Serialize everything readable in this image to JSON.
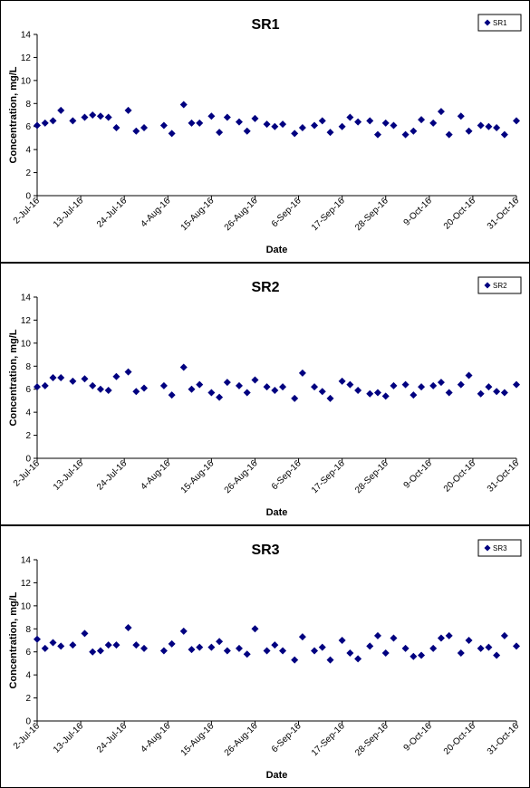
{
  "chart_data": [
    {
      "type": "scatter",
      "title": "SR1",
      "xlabel": "Date",
      "ylabel": "Concentration, mg/L",
      "ylim": [
        0,
        14
      ],
      "yticks": [
        0,
        2,
        4,
        6,
        8,
        10,
        12,
        14
      ],
      "xlim": [
        "2016-07-02",
        "2016-10-31"
      ],
      "xtick_labels": [
        "2-Jul-16",
        "13-Jul-16",
        "24-Jul-16",
        "4-Aug-16",
        "15-Aug-16",
        "26-Aug-16",
        "6-Sep-16",
        "17-Sep-16",
        "28-Sep-16",
        "9-Oct-16",
        "20-Oct-16",
        "31-Oct-16"
      ],
      "legend": "top-right",
      "grid": false,
      "marker_color": "#000080",
      "series": [
        {
          "name": "SR1",
          "x": [
            "2016-07-02",
            "2016-07-04",
            "2016-07-06",
            "2016-07-08",
            "2016-07-11",
            "2016-07-14",
            "2016-07-16",
            "2016-07-18",
            "2016-07-20",
            "2016-07-22",
            "2016-07-25",
            "2016-07-27",
            "2016-07-29",
            "2016-08-03",
            "2016-08-05",
            "2016-08-08",
            "2016-08-10",
            "2016-08-12",
            "2016-08-15",
            "2016-08-17",
            "2016-08-19",
            "2016-08-22",
            "2016-08-24",
            "2016-08-26",
            "2016-08-29",
            "2016-08-31",
            "2016-09-02",
            "2016-09-05",
            "2016-09-07",
            "2016-09-10",
            "2016-09-12",
            "2016-09-14",
            "2016-09-17",
            "2016-09-19",
            "2016-09-21",
            "2016-09-24",
            "2016-09-26",
            "2016-09-28",
            "2016-09-30",
            "2016-10-03",
            "2016-10-05",
            "2016-10-07",
            "2016-10-10",
            "2016-10-12",
            "2016-10-14",
            "2016-10-17",
            "2016-10-19",
            "2016-10-22",
            "2016-10-24",
            "2016-10-26",
            "2016-10-28",
            "2016-10-31"
          ],
          "y": [
            6.1,
            6.3,
            6.5,
            7.4,
            6.5,
            6.8,
            7.0,
            6.9,
            6.8,
            5.9,
            7.4,
            5.6,
            5.9,
            6.1,
            5.4,
            7.9,
            6.3,
            6.3,
            6.9,
            5.5,
            6.8,
            6.4,
            5.6,
            6.7,
            6.2,
            6.0,
            6.2,
            5.4,
            5.9,
            6.1,
            6.5,
            5.5,
            6.0,
            6.8,
            6.4,
            6.5,
            5.3,
            6.3,
            6.1,
            5.3,
            5.6,
            6.6,
            6.3,
            7.3,
            5.3,
            6.9,
            5.6,
            6.1,
            6.0,
            5.9,
            5.3,
            6.5
          ]
        }
      ]
    },
    {
      "type": "scatter",
      "title": "SR2",
      "xlabel": "Date",
      "ylabel": "Concentration, mg/L",
      "ylim": [
        0,
        14
      ],
      "yticks": [
        0,
        2,
        4,
        6,
        8,
        10,
        12,
        14
      ],
      "xlim": [
        "2016-07-02",
        "2016-10-31"
      ],
      "xtick_labels": [
        "2-Jul-16",
        "13-Jul-16",
        "24-Jul-16",
        "4-Aug-16",
        "15-Aug-16",
        "26-Aug-16",
        "6-Sep-16",
        "17-Sep-16",
        "28-Sep-16",
        "9-Oct-16",
        "20-Oct-16",
        "31-Oct-16"
      ],
      "legend": "top-right",
      "grid": false,
      "marker_color": "#000080",
      "series": [
        {
          "name": "SR2",
          "x": [
            "2016-07-02",
            "2016-07-04",
            "2016-07-06",
            "2016-07-08",
            "2016-07-11",
            "2016-07-14",
            "2016-07-16",
            "2016-07-18",
            "2016-07-20",
            "2016-07-22",
            "2016-07-25",
            "2016-07-27",
            "2016-07-29",
            "2016-08-03",
            "2016-08-05",
            "2016-08-08",
            "2016-08-10",
            "2016-08-12",
            "2016-08-15",
            "2016-08-17",
            "2016-08-19",
            "2016-08-22",
            "2016-08-24",
            "2016-08-26",
            "2016-08-29",
            "2016-08-31",
            "2016-09-02",
            "2016-09-05",
            "2016-09-07",
            "2016-09-10",
            "2016-09-12",
            "2016-09-14",
            "2016-09-17",
            "2016-09-19",
            "2016-09-21",
            "2016-09-24",
            "2016-09-26",
            "2016-09-28",
            "2016-09-30",
            "2016-10-03",
            "2016-10-05",
            "2016-10-07",
            "2016-10-10",
            "2016-10-12",
            "2016-10-14",
            "2016-10-17",
            "2016-10-19",
            "2016-10-22",
            "2016-10-24",
            "2016-10-26",
            "2016-10-28",
            "2016-10-31"
          ],
          "y": [
            6.2,
            6.3,
            7.0,
            7.0,
            6.7,
            6.9,
            6.3,
            6.0,
            5.9,
            7.1,
            7.5,
            5.8,
            6.1,
            6.3,
            5.5,
            7.9,
            6.0,
            6.4,
            5.7,
            5.3,
            6.6,
            6.3,
            5.7,
            6.8,
            6.2,
            5.9,
            6.2,
            5.2,
            7.4,
            6.2,
            5.8,
            5.2,
            6.7,
            6.4,
            5.9,
            5.6,
            5.7,
            5.4,
            6.3,
            6.4,
            5.5,
            6.2,
            6.3,
            6.6,
            5.7,
            6.4,
            7.2,
            5.6,
            6.2,
            5.8,
            5.7,
            6.4
          ]
        }
      ]
    },
    {
      "type": "scatter",
      "title": "SR3",
      "xlabel": "Date",
      "ylabel": "Concentration, mg/L",
      "ylim": [
        0,
        14
      ],
      "yticks": [
        0,
        2,
        4,
        6,
        8,
        10,
        12,
        14
      ],
      "xlim": [
        "2016-07-02",
        "2016-10-31"
      ],
      "xtick_labels": [
        "2-Jul-16",
        "13-Jul-16",
        "24-Jul-16",
        "4-Aug-16",
        "15-Aug-16",
        "26-Aug-16",
        "6-Sep-16",
        "17-Sep-16",
        "28-Sep-16",
        "9-Oct-16",
        "20-Oct-16",
        "31-Oct-16"
      ],
      "legend": "top-right",
      "grid": false,
      "marker_color": "#000080",
      "series": [
        {
          "name": "SR3",
          "x": [
            "2016-07-02",
            "2016-07-04",
            "2016-07-06",
            "2016-07-08",
            "2016-07-11",
            "2016-07-14",
            "2016-07-16",
            "2016-07-18",
            "2016-07-20",
            "2016-07-22",
            "2016-07-25",
            "2016-07-27",
            "2016-07-29",
            "2016-08-03",
            "2016-08-05",
            "2016-08-08",
            "2016-08-10",
            "2016-08-12",
            "2016-08-15",
            "2016-08-17",
            "2016-08-19",
            "2016-08-22",
            "2016-08-24",
            "2016-08-26",
            "2016-08-29",
            "2016-08-31",
            "2016-09-02",
            "2016-09-05",
            "2016-09-07",
            "2016-09-10",
            "2016-09-12",
            "2016-09-14",
            "2016-09-17",
            "2016-09-19",
            "2016-09-21",
            "2016-09-24",
            "2016-09-26",
            "2016-09-28",
            "2016-09-30",
            "2016-10-03",
            "2016-10-05",
            "2016-10-07",
            "2016-10-10",
            "2016-10-12",
            "2016-10-14",
            "2016-10-17",
            "2016-10-19",
            "2016-10-22",
            "2016-10-24",
            "2016-10-26",
            "2016-10-28",
            "2016-10-31"
          ],
          "y": [
            7.1,
            6.3,
            6.8,
            6.5,
            6.6,
            7.6,
            6.0,
            6.1,
            6.6,
            6.6,
            8.1,
            6.6,
            6.3,
            6.1,
            6.7,
            7.8,
            6.2,
            6.4,
            6.4,
            6.9,
            6.1,
            6.3,
            5.8,
            8.0,
            6.1,
            6.6,
            6.1,
            5.3,
            7.3,
            6.1,
            6.4,
            5.3,
            7.0,
            5.9,
            5.4,
            6.5,
            7.4,
            5.9,
            7.2,
            6.3,
            5.6,
            5.7,
            6.3,
            7.2,
            7.4,
            5.9,
            7.0,
            6.3,
            6.4,
            5.7,
            7.4,
            6.5
          ]
        }
      ]
    }
  ]
}
